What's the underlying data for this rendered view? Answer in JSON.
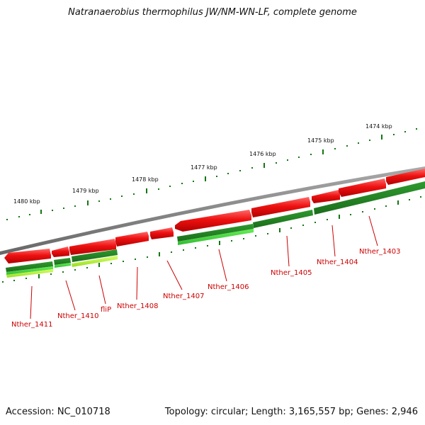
{
  "title": "Natranaerobius thermophilus JW/NM-WN-LF, complete genome",
  "accession": "Accession: NC_010718",
  "summary": "Topology: circular; Length: 3,165,557 bp; Genes: 2,946",
  "scale_labels": [
    "1480 kbp",
    "1479 kbp",
    "1478 kbp",
    "1477 kbp",
    "1476 kbp",
    "1475 kbp",
    "1474 kbp"
  ],
  "gene_labels": [
    "Nther_1411",
    "Nther_1410",
    "fliP",
    "Nther_1408",
    "Nther_1407",
    "Nther_1406",
    "Nther_1405",
    "Nther_1404",
    "Nther_1403"
  ],
  "colors": {
    "forward_gene": "#ee1111",
    "reverse_gene": "#228822",
    "reverse_gene_light": "#44dd33",
    "reverse_gene_yellow": "#b8f040",
    "backbone": "#808080",
    "scale": "#117711",
    "label": "#cc0000"
  }
}
